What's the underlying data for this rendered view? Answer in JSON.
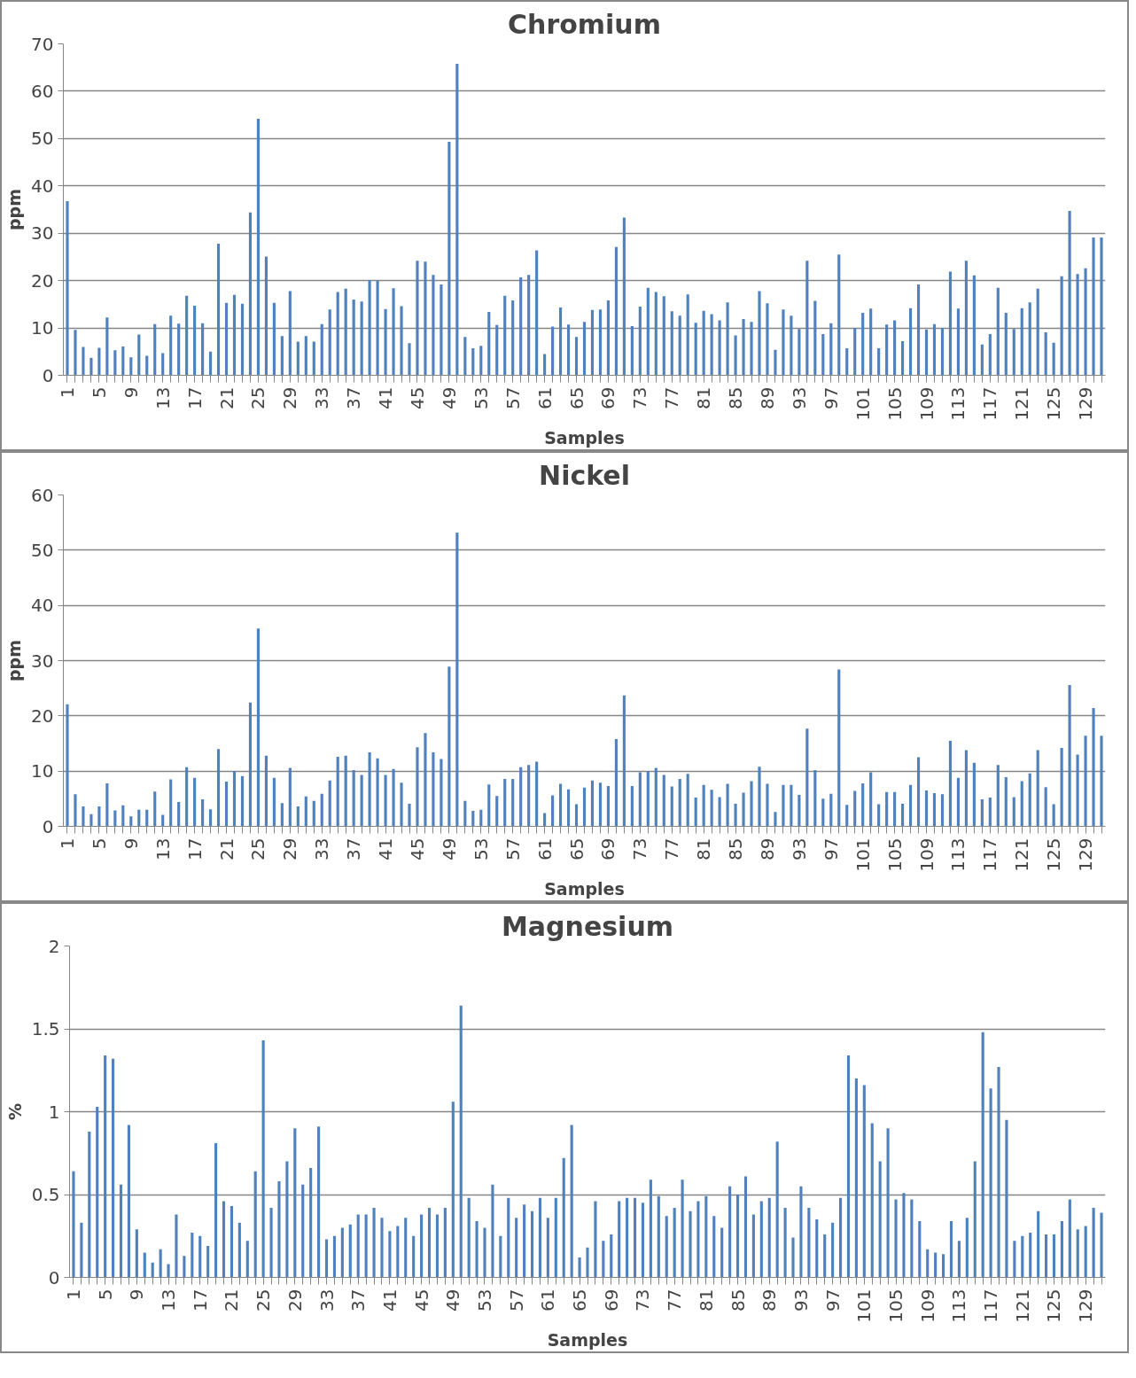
{
  "chart_data": [
    {
      "type": "bar",
      "title": "Chromium",
      "xlabel": "Samples",
      "ylabel": "ppm",
      "color": "#4f81bd",
      "grid": "y",
      "ylim": [
        0,
        70
      ],
      "yticks": [
        0,
        10,
        20,
        30,
        40,
        50,
        60,
        70
      ],
      "categories": [
        "1",
        null,
        null,
        null,
        "5",
        null,
        null,
        null,
        "9",
        null,
        null,
        null,
        "13",
        null,
        null,
        null,
        "17",
        null,
        null,
        null,
        "21",
        null,
        null,
        null,
        "25",
        null,
        null,
        null,
        "29",
        null,
        null,
        null,
        "33",
        null,
        null,
        null,
        "37",
        null,
        null,
        null,
        "41",
        null,
        null,
        null,
        "45",
        null,
        null,
        null,
        "49",
        null,
        null,
        null,
        "53",
        null,
        null,
        null,
        "57",
        null,
        null,
        null,
        "61",
        null,
        null,
        null,
        "65",
        null,
        null,
        null,
        "69",
        null,
        null,
        null,
        "73",
        null,
        null,
        null,
        "77",
        null,
        null,
        null,
        "81",
        null,
        null,
        null,
        "85",
        null,
        null,
        null,
        "89",
        null,
        null,
        null,
        "93",
        null,
        null,
        null,
        "97",
        null,
        null,
        null,
        "101",
        null,
        null,
        null,
        "105",
        null,
        null,
        null,
        "109",
        null,
        null,
        null,
        "113",
        null,
        null,
        null,
        "117",
        null,
        null,
        null,
        "121",
        null,
        null,
        null,
        "125",
        null,
        null,
        null,
        "129",
        null,
        null
      ],
      "values": [
        36.8,
        9.6,
        6.0,
        3.7,
        5.8,
        12.2,
        5.3,
        6.1,
        3.8,
        8.6,
        4.1,
        10.8,
        4.7,
        12.6,
        10.9,
        16.8,
        14.7,
        11.0,
        5.0,
        27.8,
        15.3,
        17.0,
        15.1,
        34.4,
        54.2,
        25.1,
        15.3,
        8.3,
        17.8,
        7.1,
        8.3,
        7.1,
        10.8,
        13.9,
        17.6,
        18.3,
        16.0,
        15.6,
        20.1,
        20.0,
        14.0,
        18.4,
        14.6,
        6.8,
        24.2,
        24.0,
        21.2,
        19.2,
        49.3,
        65.8,
        8.1,
        5.7,
        6.2,
        13.4,
        10.6,
        16.8,
        15.8,
        20.7,
        21.2,
        26.4,
        4.5,
        10.3,
        14.3,
        10.7,
        8.1,
        11.3,
        13.8,
        13.9,
        15.8,
        27.1,
        33.3,
        10.4,
        14.5,
        18.5,
        17.6,
        16.7,
        13.5,
        12.6,
        17.1,
        11.1,
        13.6,
        12.9,
        11.6,
        15.4,
        8.4,
        11.9,
        11.3,
        17.8,
        15.2,
        5.4,
        13.9,
        12.6,
        9.8,
        24.2,
        15.7,
        8.7,
        11.0,
        25.5,
        5.7,
        10.0,
        13.2,
        14.1,
        5.7,
        10.7,
        11.6,
        7.2,
        14.2,
        19.2,
        9.7,
        10.8,
        10.0,
        21.9,
        14.1,
        24.2,
        21.1,
        6.5,
        8.7,
        18.5,
        13.2,
        9.8,
        14.2,
        15.4,
        18.3,
        9.1,
        6.9,
        20.9,
        34.7,
        21.4,
        22.6,
        29.1,
        29.1
      ]
    },
    {
      "type": "bar",
      "title": "Nickel",
      "xlabel": "Samples",
      "ylabel": "ppm",
      "color": "#4f81bd",
      "grid": "y",
      "ylim": [
        0,
        60
      ],
      "yticks": [
        0,
        10,
        20,
        30,
        40,
        50,
        60
      ],
      "categories": [
        "1",
        null,
        null,
        null,
        "5",
        null,
        null,
        null,
        "9",
        null,
        null,
        null,
        "13",
        null,
        null,
        null,
        "17",
        null,
        null,
        null,
        "21",
        null,
        null,
        null,
        "25",
        null,
        null,
        null,
        "29",
        null,
        null,
        null,
        "33",
        null,
        null,
        null,
        "37",
        null,
        null,
        null,
        "41",
        null,
        null,
        null,
        "45",
        null,
        null,
        null,
        "49",
        null,
        null,
        null,
        "53",
        null,
        null,
        null,
        "57",
        null,
        null,
        null,
        "61",
        null,
        null,
        null,
        "65",
        null,
        null,
        null,
        "69",
        null,
        null,
        null,
        "73",
        null,
        null,
        null,
        "77",
        null,
        null,
        null,
        "81",
        null,
        null,
        null,
        "85",
        null,
        null,
        null,
        "89",
        null,
        null,
        null,
        "93",
        null,
        null,
        null,
        "97",
        null,
        null,
        null,
        "101",
        null,
        null,
        null,
        "105",
        null,
        null,
        null,
        "109",
        null,
        null,
        null,
        "113",
        null,
        null,
        null,
        "117",
        null,
        null,
        null,
        "121",
        null,
        null,
        null,
        "125",
        null,
        null,
        null,
        "129",
        null,
        null
      ],
      "values": [
        22.1,
        5.8,
        3.6,
        2.2,
        3.6,
        7.8,
        2.9,
        3.8,
        1.8,
        3.0,
        3.0,
        6.3,
        2.1,
        8.5,
        4.4,
        10.7,
        8.8,
        4.9,
        3.1,
        14.0,
        8.1,
        10.0,
        9.1,
        22.4,
        35.8,
        12.8,
        8.8,
        4.2,
        10.6,
        3.6,
        5.4,
        4.6,
        5.9,
        8.3,
        12.6,
        12.8,
        10.2,
        9.3,
        13.4,
        12.3,
        9.3,
        10.4,
        7.9,
        4.1,
        14.3,
        16.9,
        13.4,
        12.2,
        28.9,
        53.2,
        4.6,
        2.8,
        3.0,
        7.6,
        5.5,
        8.6,
        8.6,
        10.7,
        11.1,
        11.7,
        2.4,
        5.6,
        7.7,
        6.7,
        4.0,
        7.0,
        8.3,
        7.9,
        7.3,
        15.8,
        23.7,
        7.3,
        9.8,
        10.0,
        10.6,
        9.3,
        7.2,
        8.6,
        9.5,
        5.2,
        7.5,
        6.6,
        5.3,
        7.7,
        4.1,
        6.1,
        8.2,
        10.8,
        7.7,
        2.6,
        7.5,
        7.5,
        5.7,
        17.7,
        10.2,
        5.0,
        5.9,
        28.4,
        3.9,
        6.4,
        7.8,
        9.8,
        4.0,
        6.2,
        6.2,
        4.1,
        7.5,
        12.5,
        6.5,
        6.0,
        5.8,
        15.5,
        8.8,
        13.8,
        11.5,
        4.9,
        5.2,
        11.1,
        8.9,
        5.3,
        8.2,
        9.6,
        13.8,
        7.1,
        4.0,
        14.2,
        25.6,
        13.0,
        16.4,
        21.4,
        16.4
      ]
    },
    {
      "type": "bar",
      "title": "Magnesium",
      "xlabel": "Samples",
      "ylabel": "%",
      "color": "#4f81bd",
      "grid": "y",
      "ylim": [
        0,
        2
      ],
      "yticks": [
        0,
        0.5,
        1,
        1.5,
        2
      ],
      "categories": [
        "1",
        null,
        null,
        null,
        "5",
        null,
        null,
        null,
        "9",
        null,
        null,
        null,
        "13",
        null,
        null,
        null,
        "17",
        null,
        null,
        null,
        "21",
        null,
        null,
        null,
        "25",
        null,
        null,
        null,
        "29",
        null,
        null,
        null,
        "33",
        null,
        null,
        null,
        "37",
        null,
        null,
        null,
        "41",
        null,
        null,
        null,
        "45",
        null,
        null,
        null,
        "49",
        null,
        null,
        null,
        "53",
        null,
        null,
        null,
        "57",
        null,
        null,
        null,
        "61",
        null,
        null,
        null,
        "65",
        null,
        null,
        null,
        "69",
        null,
        null,
        null,
        "73",
        null,
        null,
        null,
        "77",
        null,
        null,
        null,
        "81",
        null,
        null,
        null,
        "85",
        null,
        null,
        null,
        "89",
        null,
        null,
        null,
        "93",
        null,
        null,
        null,
        "97",
        null,
        null,
        null,
        "101",
        null,
        null,
        null,
        "105",
        null,
        null,
        null,
        "109",
        null,
        null,
        null,
        "113",
        null,
        null,
        null,
        "117",
        null,
        null,
        null,
        "121",
        null,
        null,
        null,
        "125",
        null,
        null,
        null,
        "129",
        null,
        null
      ],
      "values": [
        0.64,
        0.33,
        0.88,
        1.03,
        1.34,
        1.32,
        0.56,
        0.92,
        0.29,
        0.15,
        0.09,
        0.17,
        0.08,
        0.38,
        0.13,
        0.27,
        0.25,
        0.19,
        0.81,
        0.46,
        0.43,
        0.33,
        0.22,
        0.64,
        1.43,
        0.42,
        0.58,
        0.7,
        0.9,
        0.56,
        0.66,
        0.91,
        0.23,
        0.25,
        0.3,
        0.32,
        0.38,
        0.38,
        0.42,
        0.36,
        0.28,
        0.31,
        0.36,
        0.25,
        0.38,
        0.42,
        0.38,
        0.42,
        1.06,
        1.64,
        0.48,
        0.34,
        0.3,
        0.56,
        0.25,
        0.48,
        0.36,
        0.44,
        0.4,
        0.48,
        0.36,
        0.48,
        0.72,
        0.92,
        0.12,
        0.18,
        0.46,
        0.22,
        0.26,
        0.46,
        0.48,
        0.48,
        0.45,
        0.59,
        0.49,
        0.37,
        0.42,
        0.59,
        0.4,
        0.46,
        0.49,
        0.37,
        0.3,
        0.55,
        0.5,
        0.61,
        0.38,
        0.46,
        0.48,
        0.82,
        0.42,
        0.24,
        0.55,
        0.42,
        0.35,
        0.26,
        0.33,
        0.48,
        1.34,
        1.2,
        1.16,
        0.93,
        0.7,
        0.9,
        0.47,
        0.51,
        0.47,
        0.34,
        0.17,
        0.15,
        0.14,
        0.34,
        0.22,
        0.36,
        0.7,
        1.48,
        1.14,
        1.27,
        0.95,
        0.22,
        0.25,
        0.27,
        0.4,
        0.26,
        0.26,
        0.34,
        0.47,
        0.29,
        0.31,
        0.42,
        0.39
      ]
    }
  ]
}
